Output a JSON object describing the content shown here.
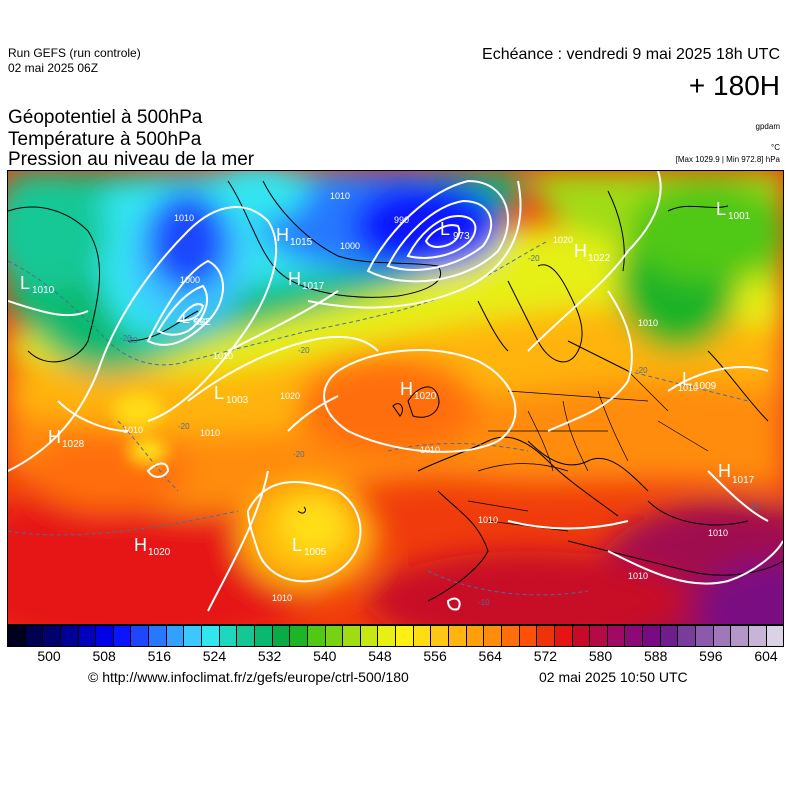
{
  "header": {
    "run_label": "Run GEFS (run controle)",
    "run_date": "02 mai 2025 06Z",
    "valid_time": "Echéance : vendredi 9 mai 2025 18h UTC",
    "lead_time": "+ 180H"
  },
  "parameters": [
    "Géopotentiel à 500hPa",
    "Température à 500hPa",
    "Pression au niveau de la mer"
  ],
  "units": {
    "geopotential": "gpdam",
    "temperature": "°C",
    "pressure_minmax": "[Max 1029.9 | Min 972.8] hPa"
  },
  "pressure_systems": [
    {
      "type": "L",
      "value": "1010"
    },
    {
      "type": "H",
      "value": "1015"
    },
    {
      "type": "H",
      "value": "1017"
    },
    {
      "type": "L",
      "value": "973"
    },
    {
      "type": "L",
      "value": "992"
    },
    {
      "type": "H",
      "value": "1022"
    },
    {
      "type": "L",
      "value": "1001"
    },
    {
      "type": "L",
      "value": "1003"
    },
    {
      "type": "H",
      "value": "1028"
    },
    {
      "type": "H",
      "value": "1020"
    },
    {
      "type": "L",
      "value": "1005"
    },
    {
      "type": "L",
      "value": "1009"
    },
    {
      "type": "H",
      "value": "1017"
    },
    {
      "type": "H",
      "value": "1020"
    }
  ],
  "isobar_labels": [
    "1010",
    "1010",
    "1000",
    "990",
    "1000",
    "1010",
    "992",
    "1010",
    "1010",
    "1020",
    "1010",
    "1010",
    "1010",
    "1010",
    "1010",
    "1010",
    "1020",
    "1010"
  ],
  "isotherm_labels": [
    "-20",
    "-20",
    "-20",
    "-20",
    "-20",
    "-20",
    "-20",
    "-10",
    "-10"
  ],
  "colorbar": {
    "colors": [
      "#00001e",
      "#000050",
      "#00006e",
      "#000096",
      "#0000be",
      "#0000e6",
      "#0a14ff",
      "#1e46ff",
      "#2878ff",
      "#32a0ff",
      "#3cc8ff",
      "#32e6f0",
      "#1ed7be",
      "#14c896",
      "#0ab96e",
      "#0aaa46",
      "#1eb428",
      "#50c814",
      "#78d214",
      "#a0dc14",
      "#c8e614",
      "#e6f014",
      "#fff014",
      "#ffdc14",
      "#ffc814",
      "#ffb40f",
      "#ffa00a",
      "#ff8c0a",
      "#ff6e0a",
      "#ff500a",
      "#f0320a",
      "#e61414",
      "#c80a28",
      "#b40a46",
      "#a00a64",
      "#8c0a78",
      "#780a82",
      "#6e1e8c",
      "#783c9b",
      "#8c5aaa",
      "#a078b9",
      "#b496c8",
      "#c8b4d7",
      "#dcd2e6"
    ],
    "ticks": [
      "500",
      "508",
      "516",
      "524",
      "532",
      "540",
      "548",
      "556",
      "564",
      "572",
      "580",
      "588",
      "596",
      "604"
    ]
  },
  "footer": {
    "url": "© http://www.infoclimat.fr/z/gefs/europe/ctrl-500/180",
    "generated": "02 mai 2025 10:50 UTC"
  }
}
